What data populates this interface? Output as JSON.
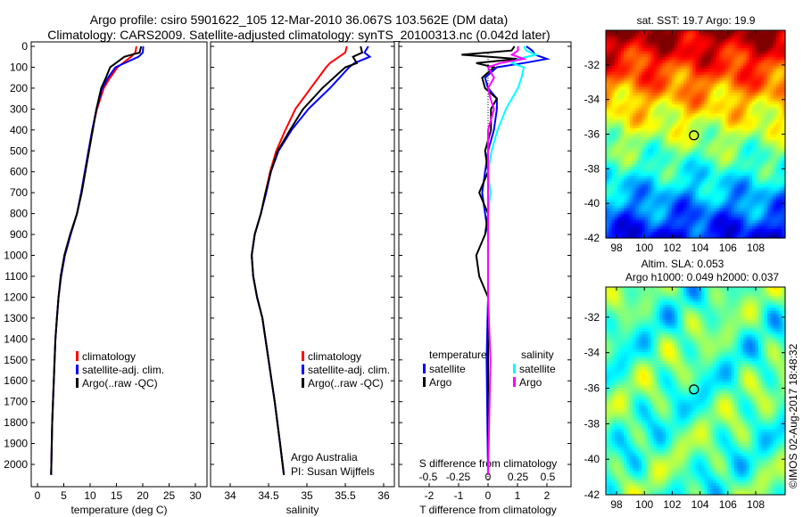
{
  "title_line1": "Argo profile: csiro 5901622_105 12-Mar-2010 36.067S 103.562E (DM data)",
  "title_line2": "Climatology: CARS2009. Satellite-adjusted climatology: synTS_20100313.nc (0.042d later)",
  "footer_credit": "©IMOS 02-Aug-2017 18:48:32",
  "attribution_line1": "Argo Australia",
  "attribution_line2": "PI: Susan Wijffels",
  "colors": {
    "climatology": "#ff0000",
    "satellite": "#0000ff",
    "argo": "#000000",
    "sal_satellite": "#00ffff",
    "sal_argo": "#ff00ff"
  },
  "chart_data": [
    {
      "type": "line",
      "id": "temperature",
      "xlabel": "temperature (deg C)",
      "xlim": [
        -1,
        32
      ],
      "ylim": [
        2050,
        0
      ],
      "xticks": [
        0,
        5,
        10,
        15,
        20,
        25,
        30
      ],
      "yticks": [
        0,
        100,
        200,
        300,
        400,
        500,
        600,
        700,
        800,
        900,
        1000,
        1100,
        1200,
        1300,
        1400,
        1500,
        1600,
        1700,
        1800,
        1900,
        2000
      ],
      "legend": [
        "climatology",
        "satellite-adj. clim.",
        "Argo(..raw -QC)"
      ],
      "depth": [
        0,
        30,
        50,
        100,
        150,
        200,
        300,
        400,
        500,
        600,
        700,
        800,
        900,
        1000,
        1100,
        1200,
        1300,
        1400,
        1600,
        1800,
        2050
      ],
      "series": [
        {
          "name": "climatology",
          "color": "#ff0000",
          "values": [
            18.8,
            18.6,
            17.8,
            15.2,
            13.8,
            12.6,
            11.3,
            10.4,
            9.7,
            9.0,
            8.3,
            7.5,
            6.3,
            5.2,
            4.5,
            4.0,
            3.7,
            3.4,
            3.1,
            2.8,
            2.6
          ]
        },
        {
          "name": "satellite-adj. clim.",
          "color": "#0000ff",
          "values": [
            20.1,
            20.0,
            19.2,
            14.8,
            13.4,
            12.3,
            11.2,
            10.4,
            9.7,
            9.0,
            8.3,
            7.5,
            6.3,
            5.2,
            4.5,
            4.0,
            3.7,
            3.4,
            3.1,
            2.8,
            2.6
          ]
        },
        {
          "name": "Argo(..raw -QC)",
          "color": "#000000",
          "values": [
            19.7,
            19.4,
            16.5,
            13.8,
            13.0,
            12.1,
            11.2,
            10.5,
            9.8,
            9.1,
            8.4,
            7.5,
            6.2,
            5.1,
            4.4,
            4.0,
            3.7,
            3.4,
            3.1,
            2.8,
            2.6
          ]
        }
      ]
    },
    {
      "type": "line",
      "id": "salinity",
      "xlabel": "salinity",
      "xlim": [
        33.75,
        36.15
      ],
      "ylim": [
        2050,
        0
      ],
      "xticks": [
        34,
        34.5,
        35,
        35.5,
        36
      ],
      "legend": [
        "climatology",
        "satellite-adj. clim.",
        "Argo(..raw -QC)"
      ],
      "depth": [
        0,
        30,
        50,
        80,
        100,
        200,
        300,
        400,
        500,
        600,
        700,
        800,
        900,
        1000,
        1100,
        1200,
        1300,
        1500,
        1700,
        1900,
        2050
      ],
      "series": [
        {
          "name": "climatology",
          "color": "#ff0000",
          "values": [
            35.52,
            35.5,
            35.42,
            35.3,
            35.25,
            35.05,
            34.85,
            34.72,
            34.6,
            34.52,
            34.46,
            34.4,
            34.32,
            34.28,
            34.3,
            34.35,
            34.42,
            34.5,
            34.58,
            34.65,
            34.7
          ]
        },
        {
          "name": "satellite-adj. clim.",
          "color": "#0000ff",
          "values": [
            35.8,
            35.75,
            35.82,
            35.62,
            35.55,
            35.3,
            35.02,
            34.8,
            34.63,
            34.53,
            34.47,
            34.4,
            34.32,
            34.28,
            34.3,
            34.35,
            34.42,
            34.5,
            34.58,
            34.65,
            34.7
          ]
        },
        {
          "name": "Argo(..raw -QC)",
          "color": "#000000",
          "values": [
            35.7,
            35.72,
            35.6,
            35.65,
            35.5,
            35.2,
            34.95,
            34.78,
            34.62,
            34.53,
            34.46,
            34.4,
            34.32,
            34.28,
            34.3,
            34.35,
            34.42,
            34.5,
            34.58,
            34.65,
            34.7
          ]
        }
      ]
    },
    {
      "type": "line",
      "id": "differences",
      "xlabel": "T difference from climatology",
      "x2label": "S difference from climatology",
      "xlim": [
        -3,
        3
      ],
      "ylim": [
        2050,
        0
      ],
      "xticks": [
        -2,
        -1,
        0,
        1,
        2
      ],
      "x2ticks": [
        "-0.5",
        "-0.25",
        "0",
        "0.25",
        "0.5"
      ],
      "legend_temperature_title": "temperature",
      "legend_salinity_title": "salinity",
      "legend": [
        "satellite",
        "Argo",
        "satellite",
        "Argo"
      ],
      "depth": [
        0,
        20,
        40,
        60,
        80,
        100,
        150,
        200,
        250,
        300,
        400,
        500,
        600,
        700,
        800,
        900,
        1000,
        1100,
        1200,
        1500,
        2050
      ],
      "series": [
        {
          "name": "T satellite",
          "color": "#0000ff",
          "values": [
            1.3,
            1.5,
            1.6,
            2.0,
            1.2,
            0.3,
            -0.1,
            0.0,
            0.3,
            0.3,
            0.2,
            0.0,
            -0.1,
            -0.2,
            -0.1,
            0.0,
            0.0,
            0.0,
            0.0,
            -0.05,
            0.0
          ]
        },
        {
          "name": "T Argo",
          "color": "#000000",
          "values": [
            0.9,
            0.8,
            -0.9,
            1.0,
            -0.4,
            0.2,
            -0.2,
            -0.1,
            0.3,
            0.1,
            0.1,
            -0.1,
            0.0,
            -0.3,
            0.0,
            -0.1,
            -0.4,
            -0.3,
            0.0,
            0.0,
            0.0
          ]
        },
        {
          "name": "S satellite",
          "color": "#00ffff",
          "values": [
            0.3,
            0.32,
            0.4,
            0.25,
            0.2,
            0.3,
            0.28,
            0.25,
            0.2,
            0.15,
            0.08,
            0.03,
            0.0,
            0.02,
            0.0,
            0.0,
            0.0,
            0.0,
            0.0,
            0.02,
            0.0
          ]
        },
        {
          "name": "S Argo",
          "color": "#ff00ff",
          "values": [
            0.25,
            0.25,
            0.2,
            0.3,
            0.1,
            0.0,
            0.05,
            0.0,
            0.02,
            0.05,
            0.0,
            0.0,
            0.0,
            0.0,
            0.0,
            0.0,
            0.0,
            0.0,
            0.0,
            0.02,
            0.0
          ]
        }
      ]
    },
    {
      "type": "heatmap",
      "id": "sst_map",
      "title": "sat. SST: 19.7 Argo: 19.9",
      "xticks": [
        98,
        100,
        102,
        104,
        106,
        108
      ],
      "yticks": [
        -32,
        -34,
        -36,
        -38,
        -40,
        -42
      ],
      "xlim": [
        97.3,
        110
      ],
      "ylim": [
        -42,
        -30
      ],
      "marker": [
        103.562,
        -36.067
      ]
    },
    {
      "type": "heatmap",
      "id": "sla_map",
      "title_line1": "Altim. SLA: 0.053",
      "title_line2": "Argo h1000: 0.049 h2000: 0.037",
      "xticks": [
        98,
        100,
        102,
        104,
        106,
        108
      ],
      "yticks": [
        -32,
        -34,
        -36,
        -38,
        -40,
        -42
      ],
      "xlim": [
        97.3,
        110
      ],
      "ylim": [
        -42,
        -30.3
      ],
      "marker": [
        103.562,
        -36.067
      ]
    }
  ]
}
